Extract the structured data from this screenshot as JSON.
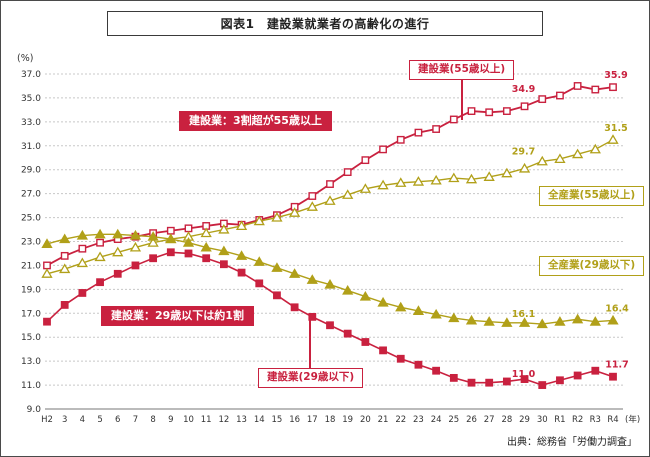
{
  "page": {
    "title": "図表1　建設業就業者の高齢化の進行",
    "source": "出典：総務省「労働力調査」"
  },
  "colors": {
    "red": "#c9213f",
    "yellow": "#b1a019",
    "grid": "#c8c8c8",
    "axis": "#777777",
    "text": "#333333"
  },
  "annotations": {
    "construction_55_label": "建設業(55歳以上)",
    "construction_55_highlight": "建設業：3割超が55歳以上",
    "all_55_label": "全産業(55歳以上)",
    "all_29_label": "全産業(29歳以下)",
    "construction_29_highlight": "建設業：29歳以下は約1割",
    "construction_29_label": "建設業(29歳以下)"
  },
  "chart_data": {
    "type": "line",
    "title": "図表1　建設業就業者の高齢化の進行",
    "y_unit_label": "(%)",
    "x_unit_label": "(年)",
    "ylim": [
      9.0,
      37.0
    ],
    "y_ticks": [
      9.0,
      11.0,
      13.0,
      15.0,
      17.0,
      19.0,
      21.0,
      23.0,
      25.0,
      27.0,
      29.0,
      31.0,
      33.0,
      35.0,
      37.0
    ],
    "grid": true,
    "legend_position": "callouts-on-chart",
    "categories": [
      "H2",
      "3",
      "4",
      "5",
      "6",
      "7",
      "8",
      "9",
      "10",
      "11",
      "12",
      "13",
      "14",
      "15",
      "16",
      "17",
      "18",
      "19",
      "20",
      "21",
      "22",
      "23",
      "24",
      "25",
      "26",
      "27",
      "28",
      "29",
      "30",
      "R1",
      "R2",
      "R3",
      "R4"
    ],
    "series": [
      {
        "name": "建設業(55歳以上)",
        "color_key": "red",
        "marker": "square-open",
        "values": [
          21.0,
          21.8,
          22.4,
          22.9,
          23.2,
          23.4,
          23.7,
          23.9,
          24.1,
          24.3,
          24.5,
          24.4,
          24.8,
          25.2,
          25.9,
          26.8,
          27.8,
          28.8,
          29.8,
          30.7,
          31.5,
          32.1,
          32.4,
          33.2,
          33.9,
          33.8,
          33.9,
          34.3,
          34.9,
          35.2,
          36.0,
          35.7,
          35.9
        ]
      },
      {
        "name": "全産業(55歳以上)",
        "color_key": "yellow",
        "marker": "triangle-open",
        "values": [
          20.3,
          20.7,
          21.2,
          21.7,
          22.1,
          22.5,
          22.9,
          23.2,
          23.4,
          23.7,
          24.0,
          24.3,
          24.7,
          25.0,
          25.4,
          25.9,
          26.4,
          26.9,
          27.4,
          27.7,
          27.9,
          28.0,
          28.1,
          28.3,
          28.2,
          28.4,
          28.7,
          29.1,
          29.7,
          29.9,
          30.3,
          30.7,
          31.5
        ]
      },
      {
        "name": "全産業(29歳以下)",
        "color_key": "yellow",
        "marker": "triangle-filled",
        "values": [
          22.8,
          23.2,
          23.5,
          23.6,
          23.6,
          23.5,
          23.4,
          23.2,
          22.9,
          22.5,
          22.2,
          21.8,
          21.3,
          20.8,
          20.3,
          19.8,
          19.4,
          18.9,
          18.4,
          17.9,
          17.5,
          17.2,
          16.9,
          16.6,
          16.4,
          16.3,
          16.2,
          16.2,
          16.1,
          16.3,
          16.5,
          16.3,
          16.4
        ]
      },
      {
        "name": "建設業(29歳以下)",
        "color_key": "red",
        "marker": "square-filled",
        "values": [
          16.3,
          17.7,
          18.7,
          19.6,
          20.3,
          21.0,
          21.6,
          22.1,
          22.0,
          21.6,
          21.1,
          20.4,
          19.5,
          18.5,
          17.5,
          16.7,
          16.0,
          15.3,
          14.6,
          13.9,
          13.2,
          12.7,
          12.2,
          11.6,
          11.2,
          11.2,
          11.3,
          11.5,
          11.0,
          11.4,
          11.8,
          12.2,
          11.7
        ]
      }
    ],
    "point_labels": [
      {
        "id": "c55-h30",
        "series": 0,
        "index": 28,
        "text": "34.9"
      },
      {
        "id": "c55-r4",
        "series": 0,
        "index": 32,
        "text": "35.9"
      },
      {
        "id": "a55-h30",
        "series": 1,
        "index": 28,
        "text": "29.7"
      },
      {
        "id": "a55-r4",
        "series": 1,
        "index": 32,
        "text": "31.5"
      },
      {
        "id": "a29-h30",
        "series": 2,
        "index": 28,
        "text": "16.1"
      },
      {
        "id": "a29-r4",
        "series": 2,
        "index": 32,
        "text": "16.4"
      },
      {
        "id": "c29-h30",
        "series": 3,
        "index": 28,
        "text": "11.0"
      },
      {
        "id": "c29-r4",
        "series": 3,
        "index": 32,
        "text": "11.7"
      }
    ]
  }
}
